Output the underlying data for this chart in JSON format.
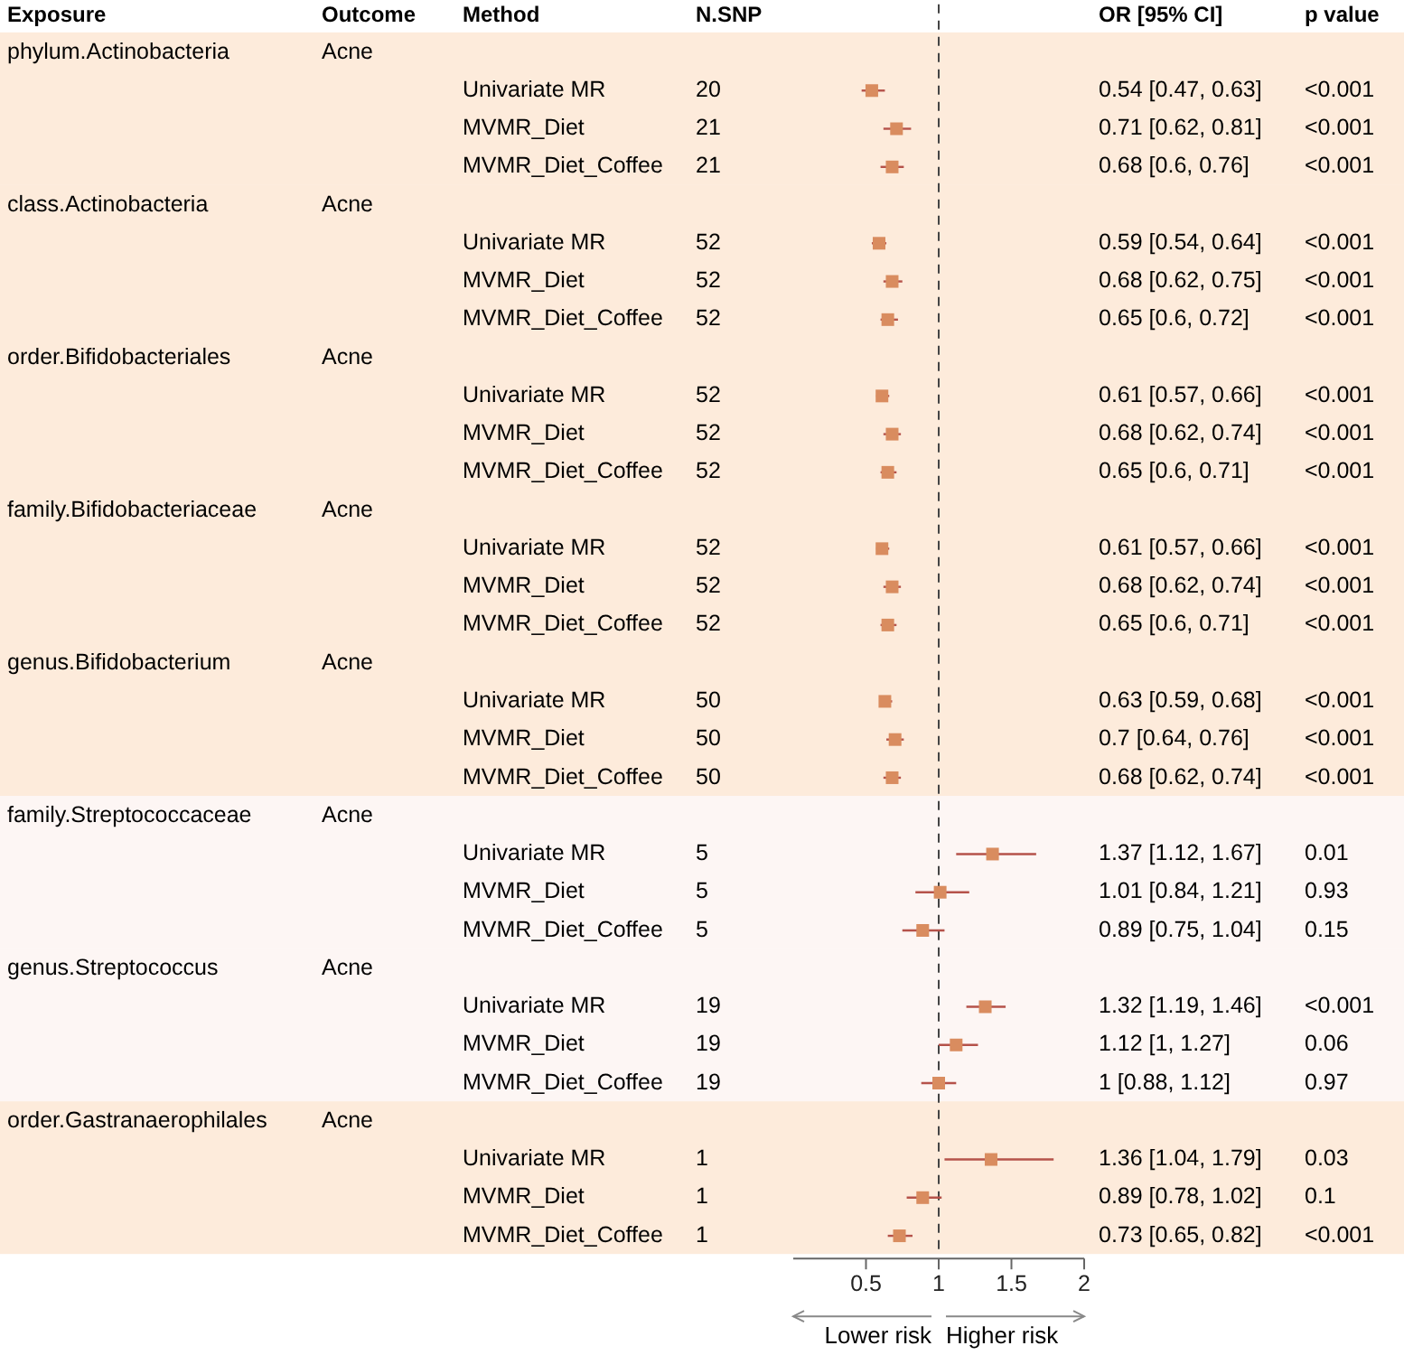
{
  "chart_data": {
    "type": "scatter",
    "orientation": "horizontal",
    "marker": "square",
    "color": "#d98c5f",
    "annotations": [
      "Exposure",
      "Outcome",
      "Method",
      "N.SNP",
      "OR [95% CI]",
      "p value",
      "Lower risk",
      "Higher risk",
      "Acne",
      "20",
      "0.54 [0.47, 0.63]",
      "<0.001",
      "21",
      "0.71 [0.62, 0.81]",
      "<0.001",
      "21",
      "0.68 [0.6, 0.76]",
      "<0.001",
      "Acne",
      "52",
      "0.59 [0.54, 0.64]",
      "<0.001",
      "52",
      "0.68 [0.62, 0.75]",
      "<0.001",
      "52",
      "0.65 [0.6, 0.72]",
      "<0.001",
      "Acne",
      "52",
      "0.61 [0.57, 0.66]",
      "<0.001",
      "52",
      "0.68 [0.62, 0.74]",
      "<0.001",
      "52",
      "0.65 [0.6, 0.71]",
      "<0.001",
      "Acne",
      "52",
      "0.61 [0.57, 0.66]",
      "<0.001",
      "52",
      "0.68 [0.62, 0.74]",
      "<0.001",
      "52",
      "0.65 [0.6, 0.71]",
      "<0.001",
      "Acne",
      "50",
      "0.63 [0.59, 0.68]",
      "<0.001",
      "50",
      "0.7 [0.64, 0.76]",
      "<0.001",
      "50",
      "0.68 [0.62, 0.74]",
      "<0.001",
      "Acne",
      "5",
      "1.37 [1.12, 1.67]",
      "0.01",
      "5",
      "1.01 [0.84, 1.21]",
      "0.93",
      "5",
      "0.89 [0.75, 1.04]",
      "0.15",
      "Acne",
      "19",
      "1.32 [1.19, 1.46]",
      "<0.001",
      "19",
      "1.12 [1, 1.27]",
      "0.06",
      "19",
      "1 [0.88, 1.12]",
      "0.97",
      "Acne",
      "1",
      "1.36 [1.04, 1.79]",
      "0.03",
      "1",
      "0.89 [0.78, 1.02]",
      "0.1",
      "1",
      "0.73 [0.65, 0.82]",
      "<0.001"
    ],
    "categories": [
      null,
      "Univariate MR",
      "MVMR_Diet",
      "MVMR_Diet_Coffee",
      null,
      "Univariate MR",
      "MVMR_Diet",
      "MVMR_Diet_Coffee",
      null,
      "Univariate MR",
      "MVMR_Diet",
      "MVMR_Diet_Coffee",
      null,
      "Univariate MR",
      "MVMR_Diet",
      "MVMR_Diet_Coffee",
      null,
      "Univariate MR",
      "MVMR_Diet",
      "MVMR_Diet_Coffee",
      null,
      "Univariate MR",
      "MVMR_Diet",
      "MVMR_Diet_Coffee",
      null,
      "Univariate MR",
      "MVMR_Diet",
      "MVMR_Diet_Coffee",
      null,
      "Univariate MR",
      "MVMR_Diet",
      "MVMR_Diet_Coffee"
    ],
    "y_categories": [
      "phylum.Actinobacteria",
      null,
      null,
      null,
      "class.Actinobacteria",
      null,
      null,
      null,
      "order.Bifidobacteriales",
      null,
      null,
      null,
      "family.Bifidobacteriaceae",
      null,
      null,
      null,
      "genus.Bifidobacterium",
      null,
      null,
      null,
      "family.Streptococcaceae",
      null,
      null,
      null,
      "genus.Streptococcus",
      null,
      null,
      null,
      "order.Gastranaerophilales",
      null,
      null,
      null
    ],
    "values": [
      null,
      0.54,
      0.71,
      0.68,
      null,
      0.59,
      0.68,
      0.65,
      null,
      0.61,
      0.68,
      0.65,
      null,
      0.61,
      0.68,
      0.65,
      null,
      0.63,
      0.7,
      0.68,
      null,
      1.37,
      1.01,
      0.89,
      null,
      1.32,
      1.12,
      1,
      null,
      1.36,
      0.89,
      0.73
    ],
    "errors": [
      null,
      [
        0.47,
        0.63
      ],
      [
        0.62,
        0.81
      ],
      [
        0.6,
        0.76
      ],
      null,
      [
        0.54,
        0.64
      ],
      [
        0.62,
        0.75
      ],
      [
        0.6,
        0.72
      ],
      null,
      [
        0.57,
        0.66
      ],
      [
        0.62,
        0.74
      ],
      [
        0.6,
        0.71
      ],
      null,
      [
        0.57,
        0.66
      ],
      [
        0.62,
        0.74
      ],
      [
        0.6,
        0.71
      ],
      null,
      [
        0.59,
        0.68
      ],
      [
        0.64,
        0.76
      ],
      [
        0.62,
        0.74
      ],
      null,
      [
        1.12,
        1.67
      ],
      [
        0.84,
        1.21
      ],
      [
        0.75,
        1.04
      ],
      null,
      [
        1.19,
        1.46
      ],
      [
        1,
        1.27
      ],
      [
        0.88,
        1.12
      ],
      null,
      [
        1.04,
        1.79
      ],
      [
        0.78,
        1.02
      ],
      [
        0.65,
        0.82
      ]
    ],
    "xlim": [
      0,
      2
    ],
    "xticks": [
      0.5,
      1,
      1.5,
      2
    ],
    "ref_lines": [
      {
        "axis": "x",
        "value": 1,
        "line_style": "dashed",
        "color": "#444444"
      }
    ]
  }
}
